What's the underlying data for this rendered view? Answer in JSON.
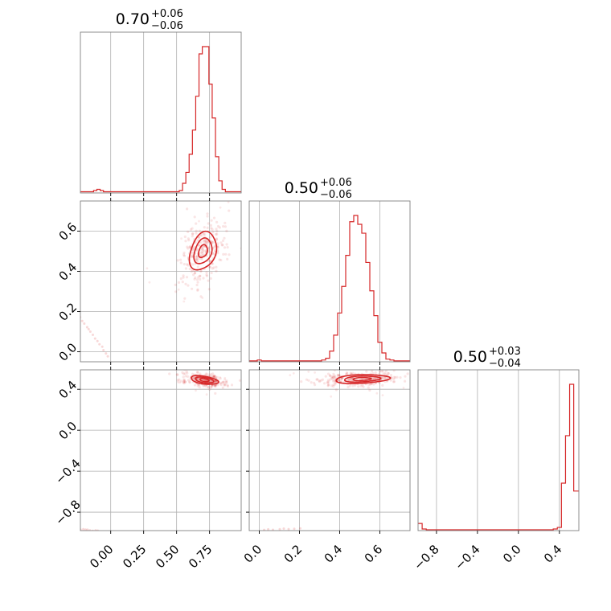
{
  "chart_data": {
    "type": "corner",
    "color": "#d62728",
    "grid": true,
    "parameters": [
      {
        "id": "p1",
        "range": [
          -0.23,
          0.99
        ],
        "title_value": "0.70",
        "title_plus": "+0.06",
        "title_minus": "−0.06",
        "ticks": [
          0.0,
          0.25,
          0.5,
          0.75
        ],
        "tick_labels": [
          "0.00",
          "0.25",
          "0.50",
          "0.75"
        ],
        "hist": {
          "bin_edges": [
            -0.23,
            -0.205,
            -0.18,
            -0.155,
            -0.13,
            -0.105,
            -0.08,
            -0.055,
            -0.03,
            -0.005,
            0.02,
            0.045,
            0.07,
            0.095,
            0.12,
            0.145,
            0.17,
            0.195,
            0.22,
            0.245,
            0.27,
            0.295,
            0.32,
            0.345,
            0.37,
            0.395,
            0.42,
            0.445,
            0.47,
            0.495,
            0.52,
            0.545,
            0.57,
            0.595,
            0.62,
            0.645,
            0.67,
            0.695,
            0.72,
            0.745,
            0.77,
            0.795,
            0.82,
            0.845,
            0.87,
            0.895,
            0.92,
            0.945,
            0.97,
            0.99
          ],
          "counts": [
            1,
            1,
            1,
            1,
            2,
            3,
            2,
            1,
            1,
            1,
            1,
            1,
            1,
            1,
            1,
            1,
            1,
            1,
            1,
            1,
            1,
            1,
            1,
            1,
            1,
            1,
            1,
            1,
            1,
            1,
            2,
            8,
            17,
            32,
            52,
            80,
            115,
            121,
            121,
            90,
            62,
            30,
            10,
            3,
            1,
            1,
            1,
            1,
            1
          ]
        }
      },
      {
        "id": "p2",
        "range": [
          -0.05,
          0.75
        ],
        "title_value": "0.50",
        "title_plus": "+0.06",
        "title_minus": "−0.06",
        "ticks": [
          0.0,
          0.2,
          0.4,
          0.6
        ],
        "tick_labels": [
          "0.0",
          "0.2",
          "0.4",
          "0.6"
        ],
        "hist": {
          "bin_edges": [
            -0.05,
            -0.03,
            -0.01,
            0.01,
            0.03,
            0.05,
            0.07,
            0.09,
            0.11,
            0.13,
            0.15,
            0.17,
            0.19,
            0.21,
            0.23,
            0.25,
            0.27,
            0.29,
            0.31,
            0.33,
            0.35,
            0.37,
            0.39,
            0.41,
            0.43,
            0.45,
            0.47,
            0.49,
            0.51,
            0.53,
            0.55,
            0.57,
            0.59,
            0.61,
            0.63,
            0.65,
            0.67,
            0.69,
            0.71,
            0.73,
            0.75
          ],
          "counts": [
            1,
            1,
            2,
            1,
            1,
            1,
            1,
            1,
            1,
            1,
            1,
            1,
            1,
            1,
            1,
            1,
            1,
            1,
            2,
            4,
            12,
            30,
            55,
            85,
            120,
            158,
            165,
            155,
            145,
            112,
            80,
            52,
            22,
            10,
            3,
            2,
            1,
            1,
            1,
            1
          ]
        }
      },
      {
        "id": "p3",
        "range": [
          -0.98,
          0.59
        ],
        "title_value": "0.50",
        "title_plus": "+0.03",
        "title_minus": "−0.04",
        "ticks": [
          -0.8,
          -0.4,
          0.0,
          0.4
        ],
        "tick_labels": [
          "−0.8",
          "−0.4",
          "0.0",
          "0.4"
        ],
        "hist": {
          "bin_edges": [
            -0.98,
            -0.94,
            -0.9,
            -0.86,
            -0.82,
            -0.78,
            -0.74,
            -0.7,
            -0.66,
            -0.62,
            -0.58,
            -0.54,
            -0.5,
            -0.46,
            -0.42,
            -0.38,
            -0.34,
            -0.3,
            -0.26,
            -0.22,
            -0.18,
            -0.14,
            -0.1,
            -0.06,
            -0.02,
            0.02,
            0.06,
            0.1,
            0.14,
            0.18,
            0.22,
            0.26,
            0.3,
            0.34,
            0.38,
            0.42,
            0.46,
            0.5,
            0.54,
            0.59
          ],
          "counts": [
            18,
            4,
            2,
            2,
            2,
            2,
            2,
            2,
            2,
            2,
            2,
            2,
            2,
            2,
            2,
            2,
            2,
            2,
            2,
            2,
            2,
            2,
            2,
            2,
            2,
            2,
            2,
            2,
            2,
            2,
            2,
            2,
            2,
            4,
            8,
            120,
            240,
            370,
            100
          ]
        }
      }
    ],
    "y_ranges": {
      "p2": [
        -0.05,
        0.75
      ],
      "p3": [
        -0.98,
        0.59
      ]
    },
    "y_ticks": {
      "p2": {
        "ticks": [
          0.0,
          0.2,
          0.4,
          0.6
        ],
        "labels": [
          "0.0",
          "0.2",
          "0.4",
          "0.6"
        ]
      },
      "p3": {
        "ticks": [
          -0.8,
          -0.4,
          0.0,
          0.4
        ],
        "labels": [
          "−0.8",
          "−0.4",
          "0.0",
          "0.4"
        ]
      }
    },
    "joint": [
      {
        "x": "p1",
        "y": "p2",
        "center": [
          0.7,
          0.5
        ],
        "sd": [
          0.055,
          0.075
        ],
        "angle_deg": -52,
        "levels": [
          0.5,
          1.0,
          1.5
        ],
        "tail": {
          "from": [
            -0.23,
            0.17
          ],
          "to": [
            -0.02,
            -0.02
          ],
          "n": 14
        }
      },
      {
        "x": "p1",
        "y": "p3",
        "center": [
          0.71,
          0.49
        ],
        "sd": [
          0.07,
          0.025
        ],
        "angle_deg": -12,
        "levels": [
          0.5,
          1.0,
          1.5
        ],
        "tail": {
          "from": [
            -0.23,
            -0.97
          ],
          "to": [
            -0.1,
            -0.98
          ],
          "n": 8
        }
      },
      {
        "x": "p2",
        "y": "p3",
        "center": [
          0.51,
          0.5
        ],
        "sd": [
          0.09,
          0.028
        ],
        "angle_deg": 5,
        "levels": [
          0.5,
          1.0,
          1.5
        ],
        "tail": {
          "from": [
            0.02,
            -0.97
          ],
          "to": [
            0.2,
            -0.96
          ],
          "n": 8
        }
      }
    ]
  }
}
